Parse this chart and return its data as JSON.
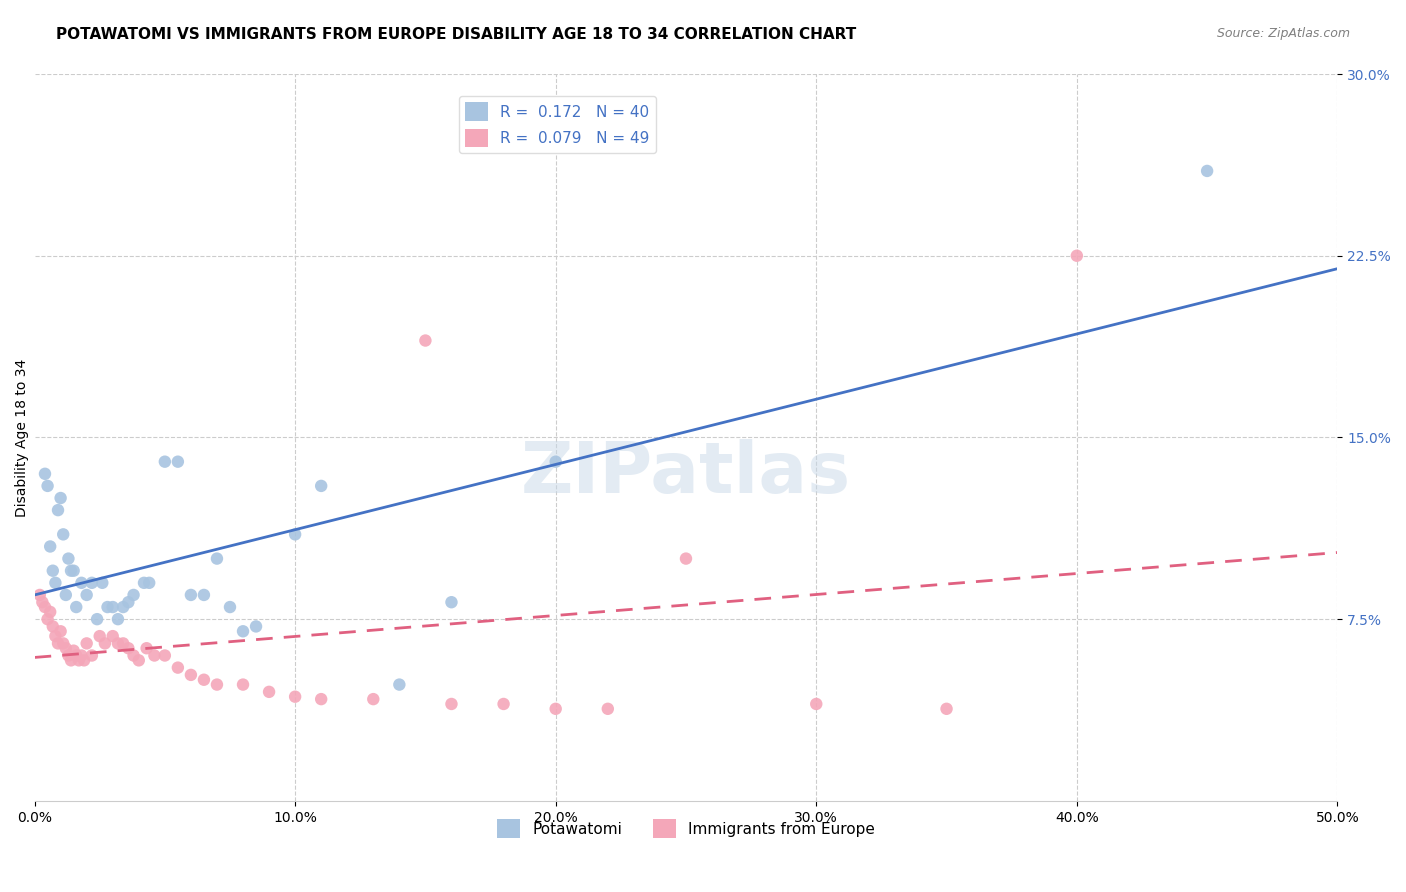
{
  "title": "POTAWATOMI VS IMMIGRANTS FROM EUROPE DISABILITY AGE 18 TO 34 CORRELATION CHART",
  "source": "Source: ZipAtlas.com",
  "ylabel": "Disability Age 18 to 34",
  "xlim": [
    0.0,
    0.5
  ],
  "ylim": [
    0.0,
    0.3
  ],
  "xticks": [
    0.0,
    0.1,
    0.2,
    0.3,
    0.4,
    0.5
  ],
  "xtick_labels": [
    "0.0%",
    "10.0%",
    "20.0%",
    "30.0%",
    "40.0%",
    "50.0%"
  ],
  "yticks_right": [
    0.075,
    0.15,
    0.225,
    0.3
  ],
  "ytick_labels_right": [
    "7.5%",
    "15.0%",
    "22.5%",
    "30.0%"
  ],
  "background_color": "#ffffff",
  "grid_color": "#cccccc",
  "watermark": "ZIPatlas",
  "series": [
    {
      "name": "Potawatomi",
      "R": 0.172,
      "N": 40,
      "color": "#a8c4e0",
      "line_color": "#4472c4",
      "line_style": "solid",
      "x": [
        0.004,
        0.005,
        0.006,
        0.007,
        0.008,
        0.009,
        0.01,
        0.011,
        0.012,
        0.013,
        0.014,
        0.015,
        0.016,
        0.018,
        0.02,
        0.022,
        0.024,
        0.026,
        0.028,
        0.03,
        0.032,
        0.034,
        0.036,
        0.038,
        0.042,
        0.044,
        0.05,
        0.055,
        0.06,
        0.065,
        0.07,
        0.075,
        0.08,
        0.085,
        0.1,
        0.11,
        0.14,
        0.16,
        0.2,
        0.45
      ],
      "y": [
        0.135,
        0.13,
        0.105,
        0.095,
        0.09,
        0.12,
        0.125,
        0.11,
        0.085,
        0.1,
        0.095,
        0.095,
        0.08,
        0.09,
        0.085,
        0.09,
        0.075,
        0.09,
        0.08,
        0.08,
        0.075,
        0.08,
        0.082,
        0.085,
        0.09,
        0.09,
        0.14,
        0.14,
        0.085,
        0.085,
        0.1,
        0.08,
        0.07,
        0.072,
        0.11,
        0.13,
        0.048,
        0.082,
        0.14,
        0.26
      ]
    },
    {
      "name": "Immigrants from Europe",
      "R": 0.079,
      "N": 49,
      "color": "#f4a7b9",
      "line_color": "#e06080",
      "line_style": "dashed",
      "x": [
        0.002,
        0.003,
        0.004,
        0.005,
        0.006,
        0.007,
        0.008,
        0.009,
        0.01,
        0.011,
        0.012,
        0.013,
        0.014,
        0.015,
        0.016,
        0.017,
        0.018,
        0.019,
        0.02,
        0.022,
        0.025,
        0.027,
        0.03,
        0.032,
        0.034,
        0.036,
        0.038,
        0.04,
        0.043,
        0.046,
        0.05,
        0.055,
        0.06,
        0.065,
        0.07,
        0.08,
        0.09,
        0.1,
        0.11,
        0.13,
        0.15,
        0.16,
        0.18,
        0.2,
        0.22,
        0.25,
        0.3,
        0.35,
        0.4
      ],
      "y": [
        0.085,
        0.082,
        0.08,
        0.075,
        0.078,
        0.072,
        0.068,
        0.065,
        0.07,
        0.065,
        0.063,
        0.06,
        0.058,
        0.062,
        0.06,
        0.058,
        0.06,
        0.058,
        0.065,
        0.06,
        0.068,
        0.065,
        0.068,
        0.065,
        0.065,
        0.063,
        0.06,
        0.058,
        0.063,
        0.06,
        0.06,
        0.055,
        0.052,
        0.05,
        0.048,
        0.048,
        0.045,
        0.043,
        0.042,
        0.042,
        0.19,
        0.04,
        0.04,
        0.038,
        0.038,
        0.1,
        0.04,
        0.038,
        0.225
      ]
    }
  ],
  "title_fontsize": 11,
  "axis_label_fontsize": 10,
  "tick_fontsize": 10,
  "legend_fontsize": 11
}
